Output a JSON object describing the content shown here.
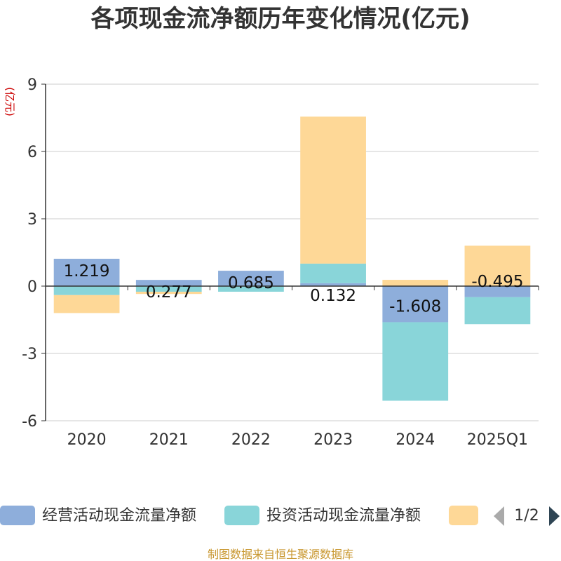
{
  "chart_data": {
    "type": "bar",
    "stacked": true,
    "title": "各项现金流净额历年变化情况(亿元)",
    "ylabel": "(亿元)",
    "ylim": [
      -6,
      9
    ],
    "yticks": [
      -6,
      -3,
      0,
      3,
      6,
      9
    ],
    "grid": true,
    "categories": [
      "2020",
      "2021",
      "2022",
      "2023",
      "2024",
      "2025Q1"
    ],
    "series": [
      {
        "name": "经营活动现金流量净额",
        "color": "#8eaedb",
        "values": [
          1.219,
          0.277,
          0.685,
          0.132,
          -1.608,
          -0.495
        ],
        "labels": [
          "1.219",
          "0.277",
          "0.685",
          "0.132",
          "-1.608",
          "-0.495"
        ]
      },
      {
        "name": "投资活动现金流量净额",
        "color": "#89d5d9",
        "values": [
          -0.4,
          -0.25,
          -0.25,
          0.87,
          -3.5,
          -1.2
        ]
      },
      {
        "name": "",
        "color": "#fed897",
        "values": [
          -0.8,
          -0.1,
          0,
          6.55,
          0.28,
          1.8
        ]
      }
    ],
    "legend_position": "bottom"
  },
  "legend": {
    "page": "1/2",
    "prev_icon": "triangle-left-icon",
    "next_icon": "triangle-right-icon",
    "prev_color": "#aaaaaa",
    "next_color": "#2f4554"
  },
  "source_text": "制图数据来自恒生聚源数据库"
}
